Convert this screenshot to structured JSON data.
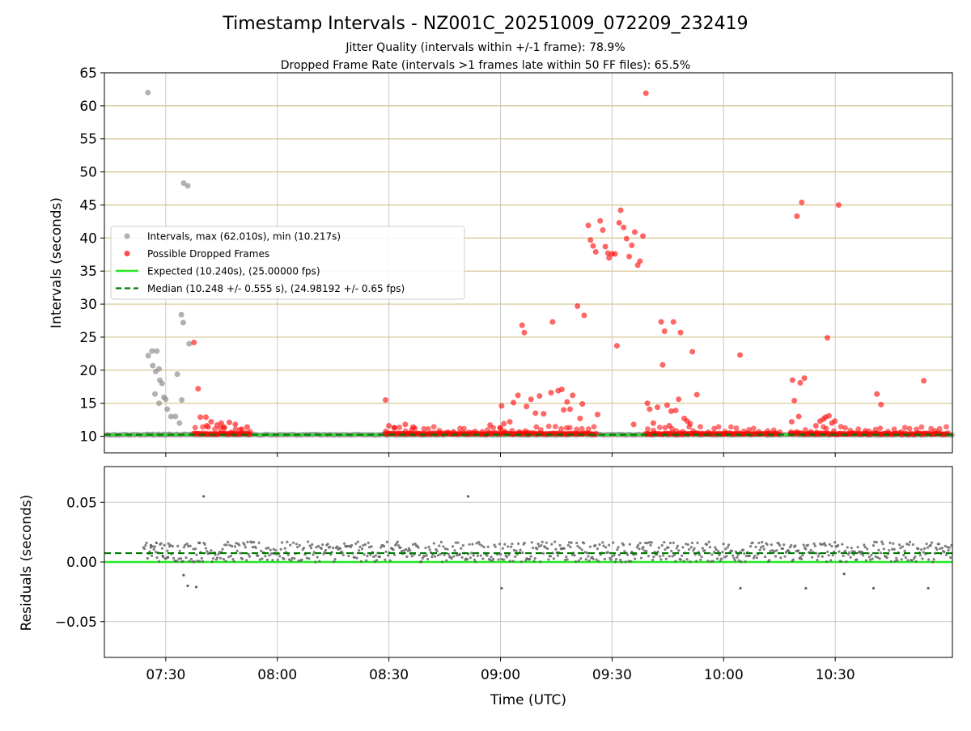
{
  "chart_data": {
    "type": "scatter",
    "title": "Timestamp Intervals - NZ001C_20251009_072209_232419",
    "subtitle_lines": [
      "Jitter Quality (intervals within +/-1 frame): 78.9%",
      "Dropped Frame Rate (intervals >1 frames late within 50 FF files): 65.5%"
    ],
    "xlabel": "Time (UTC)",
    "x_units": "minutes since 07:00 UTC",
    "xlim": [
      13.5,
      241.5
    ],
    "x_ticks": [
      {
        "value": 30,
        "label": "07:30"
      },
      {
        "value": 60,
        "label": "08:00"
      },
      {
        "value": 90,
        "label": "08:30"
      },
      {
        "value": 120,
        "label": "09:00"
      },
      {
        "value": 150,
        "label": "09:30"
      },
      {
        "value": 180,
        "label": "10:00"
      },
      {
        "value": 210,
        "label": "10:30"
      }
    ],
    "top_panel": {
      "ylabel": "Intervals (seconds)",
      "ylim": [
        7.5,
        65
      ],
      "y_ticks": [
        10,
        15,
        20,
        25,
        30,
        35,
        40,
        45,
        50,
        55,
        60,
        65
      ],
      "y_tick_labels": [
        "10",
        "15",
        "20",
        "25",
        "30",
        "35",
        "40",
        "45",
        "50",
        "55",
        "60",
        "65"
      ],
      "horizontal_grid_color": "#d4c48c",
      "vertical_grid_color": "#c8c8c8",
      "expected_interval": 10.24,
      "median_interval": 10.248,
      "baseline_band": [
        {
          "start": 14,
          "end": 241.5,
          "y": 10.24
        }
      ],
      "legend": {
        "location": "center-left",
        "entries": [
          {
            "label": "Intervals, max (62.010s), min (10.217s)",
            "marker": "circle",
            "color": "#909090"
          },
          {
            "label": "Possible Dropped Frames",
            "marker": "circle",
            "color": "#ff0000"
          },
          {
            "label": "Expected (10.240s), (25.00000 fps)",
            "marker": "line-solid",
            "color": "#22e822"
          },
          {
            "label": "Median (10.248 +/- 0.555 s), (24.98192 +/- 0.65 fps)",
            "marker": "line-dashed",
            "color": "#007a00"
          }
        ]
      },
      "series": [
        {
          "name": "Intervals",
          "color": "#909090",
          "points": [
            [
              25.2,
              62.0
            ],
            [
              34.8,
              48.3
            ],
            [
              35.9,
              47.9
            ],
            [
              34.2,
              28.4
            ],
            [
              34.7,
              27.2
            ],
            [
              36.3,
              24.0
            ],
            [
              25.3,
              22.2
            ],
            [
              26.3,
              22.9
            ],
            [
              27.6,
              22.9
            ],
            [
              26.5,
              20.7
            ],
            [
              28.2,
              20.2
            ],
            [
              27.3,
              19.8
            ],
            [
              33.1,
              19.4
            ],
            [
              28.4,
              18.5
            ],
            [
              29.0,
              18.0
            ],
            [
              27.1,
              16.4
            ],
            [
              29.5,
              15.9
            ],
            [
              30.0,
              15.6
            ],
            [
              34.3,
              15.5
            ],
            [
              28.2,
              15.0
            ],
            [
              30.4,
              14.1
            ],
            [
              31.4,
              13.0
            ],
            [
              32.6,
              13.0
            ],
            [
              33.7,
              12.0
            ],
            [
              25.0,
              10.3
            ],
            [
              26.5,
              10.3
            ],
            [
              28.0,
              10.3
            ],
            [
              29.5,
              10.3
            ],
            [
              31.0,
              10.3
            ],
            [
              33.0,
              10.3
            ],
            [
              35.0,
              10.3
            ],
            [
              37.0,
              10.3
            ]
          ]
        },
        {
          "name": "Possible Dropped Frames",
          "color": "#ff0000",
          "points": [
            [
              37.6,
              24.2
            ],
            [
              38.7,
              17.2
            ],
            [
              39.3,
              12.9
            ],
            [
              40.8,
              12.9
            ],
            [
              41.0,
              11.6
            ],
            [
              42.2,
              12.2
            ],
            [
              43.8,
              11.7
            ],
            [
              44.9,
              12.0
            ],
            [
              45.8,
              11.3
            ],
            [
              47.1,
              12.1
            ],
            [
              48.7,
              11.8
            ],
            [
              50.0,
              11.0
            ],
            [
              51.9,
              11.4
            ],
            [
              89.1,
              15.5
            ],
            [
              90.0,
              11.6
            ],
            [
              91.4,
              11.3
            ],
            [
              94.4,
              11.8
            ],
            [
              96.5,
              11.4
            ],
            [
              117.2,
              11.7
            ],
            [
              119.9,
              11.3
            ],
            [
              120.3,
              14.6
            ],
            [
              120.9,
              11.9
            ],
            [
              122.5,
              12.2
            ],
            [
              123.5,
              15.1
            ],
            [
              124.7,
              16.2
            ],
            [
              125.8,
              26.8
            ],
            [
              126.4,
              25.7
            ],
            [
              127.0,
              14.5
            ],
            [
              128.2,
              15.6
            ],
            [
              129.4,
              13.5
            ],
            [
              130.5,
              16.1
            ],
            [
              131.6,
              13.4
            ],
            [
              133.6,
              16.6
            ],
            [
              134.0,
              27.3
            ],
            [
              135.5,
              16.9
            ],
            [
              136.5,
              17.1
            ],
            [
              137.0,
              14.0
            ],
            [
              137.9,
              15.2
            ],
            [
              138.7,
              14.1
            ],
            [
              139.4,
              16.2
            ],
            [
              140.7,
              29.7
            ],
            [
              141.4,
              12.7
            ],
            [
              142.5,
              28.3
            ],
            [
              142.0,
              14.9
            ],
            [
              143.6,
              41.9
            ],
            [
              144.2,
              39.7
            ],
            [
              144.9,
              38.8
            ],
            [
              145.6,
              37.9
            ],
            [
              146.1,
              13.3
            ],
            [
              146.8,
              42.6
            ],
            [
              147.5,
              41.2
            ],
            [
              148.2,
              38.7
            ],
            [
              148.9,
              37.7
            ],
            [
              149.2,
              37.0
            ],
            [
              150.0,
              37.6
            ],
            [
              150.8,
              37.6
            ],
            [
              151.3,
              23.7
            ],
            [
              151.9,
              42.3
            ],
            [
              152.3,
              44.2
            ],
            [
              153.1,
              41.6
            ],
            [
              153.9,
              39.9
            ],
            [
              154.6,
              37.2
            ],
            [
              155.3,
              38.9
            ],
            [
              155.8,
              11.8
            ],
            [
              156.1,
              40.9
            ],
            [
              156.9,
              35.9
            ],
            [
              157.5,
              36.5
            ],
            [
              158.3,
              40.3
            ],
            [
              159.1,
              61.9
            ],
            [
              159.5,
              15.0
            ],
            [
              160.1,
              14.1
            ],
            [
              161.1,
              12.0
            ],
            [
              162.2,
              14.4
            ],
            [
              163.2,
              27.3
            ],
            [
              163.6,
              20.8
            ],
            [
              164.1,
              25.9
            ],
            [
              164.8,
              14.7
            ],
            [
              165.4,
              11.6
            ],
            [
              165.9,
              13.8
            ],
            [
              166.5,
              27.3
            ],
            [
              167.1,
              13.9
            ],
            [
              167.9,
              15.6
            ],
            [
              168.4,
              25.7
            ],
            [
              169.4,
              12.7
            ],
            [
              170.2,
              12.3
            ],
            [
              171.0,
              11.9
            ],
            [
              171.6,
              22.8
            ],
            [
              172.8,
              16.3
            ],
            [
              184.4,
              22.3
            ],
            [
              198.3,
              12.2
            ],
            [
              198.5,
              18.5
            ],
            [
              199.0,
              15.4
            ],
            [
              199.7,
              43.3
            ],
            [
              200.2,
              13.0
            ],
            [
              200.6,
              18.1
            ],
            [
              201.0,
              45.4
            ],
            [
              201.7,
              18.8
            ],
            [
              204.8,
              11.6
            ],
            [
              205.9,
              12.3
            ],
            [
              206.8,
              12.6
            ],
            [
              207.4,
              12.9
            ],
            [
              207.9,
              24.9
            ],
            [
              208.3,
              13.1
            ],
            [
              209.1,
              12.0
            ],
            [
              209.9,
              12.3
            ],
            [
              210.9,
              45.0
            ],
            [
              221.2,
              16.4
            ],
            [
              222.3,
              14.8
            ],
            [
              233.8,
              18.4
            ]
          ],
          "baseline_segments": [
            {
              "start": 37.5,
              "end": 53.0,
              "y": 10.4
            },
            {
              "start": 89.0,
              "end": 146.0,
              "y": 10.4
            },
            {
              "start": 159.0,
              "end": 195.0,
              "y": 10.4
            },
            {
              "start": 198.0,
              "end": 240.5,
              "y": 10.4
            }
          ]
        }
      ]
    },
    "bottom_panel": {
      "ylabel": "Residuals (seconds)",
      "ylim": [
        -0.08,
        0.08
      ],
      "y_ticks": [
        0.05,
        0.0,
        -0.05
      ],
      "y_tick_labels": [
        "0.05",
        "0.00",
        "−0.05"
      ],
      "expected_residual": 0.0,
      "median_residual": 0.0074,
      "residual_band": {
        "start": 24.0,
        "end": 241.5,
        "low": 0.0,
        "high": 0.017
      },
      "outliers": [
        [
          40.2,
          0.055
        ],
        [
          111.3,
          0.055
        ],
        [
          34.8,
          -0.011
        ],
        [
          35.9,
          -0.02
        ],
        [
          38.2,
          -0.021
        ],
        [
          120.3,
          -0.022
        ],
        [
          184.5,
          -0.022
        ],
        [
          202.1,
          -0.022
        ],
        [
          212.4,
          -0.01
        ],
        [
          220.3,
          -0.022
        ],
        [
          235.0,
          -0.022
        ],
        [
          26.0,
          0.014
        ],
        [
          27.5,
          0.016
        ],
        [
          29.2,
          0.005
        ],
        [
          30.6,
          0.004
        ],
        [
          39.1,
          0.016
        ]
      ]
    }
  }
}
